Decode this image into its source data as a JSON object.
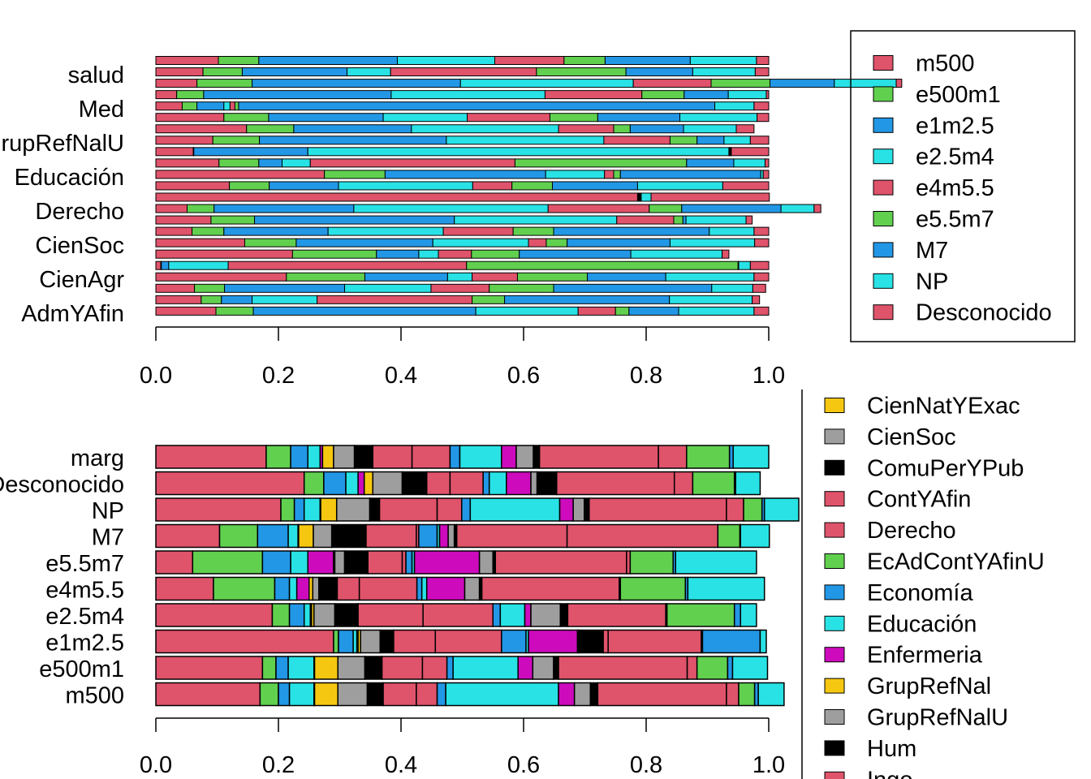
{
  "palette": {
    "red": "#DF536B",
    "green": "#61D04F",
    "blue": "#2297E6",
    "cyan": "#28E2E5",
    "magenta": "#CD0BBC",
    "yellow": "#F5C710",
    "gray": "#9E9E9E",
    "black": "#000000"
  },
  "chart_data": [
    {
      "type": "bar",
      "orientation": "horizontal",
      "stacked": "proportional",
      "xlim": [
        0,
        1
      ],
      "xticks": [
        "0.0",
        "0.2",
        "0.4",
        "0.6",
        "0.8",
        "1.0"
      ],
      "ytick_labels": [
        "salud",
        "Med",
        "GrupRefNalU",
        "Educación",
        "Derecho",
        "CienSoc",
        "CienAgr",
        "AdmYAfin"
      ],
      "legend": {
        "placement": "top-right",
        "entries": [
          "m500",
          "e500m1",
          "e1m2.5",
          "e2.5m4",
          "e4m5.5",
          "e5.5m7",
          "M7",
          "NP",
          "Desconocido"
        ],
        "colors": [
          "#DF536B",
          "#61D04F",
          "#2297E6",
          "#28E2E5",
          "#DF536B",
          "#61D04F",
          "#2297E6",
          "#28E2E5",
          "#DF536B"
        ]
      },
      "rows": [
        [
          0.102,
          0.066,
          0.226,
          0.159,
          0.113,
          0.067,
          0.139,
          0.108,
          0.02
        ],
        [
          0.077,
          0.064,
          0.171,
          0.071,
          0.238,
          0.146,
          0.109,
          0.102,
          0.022
        ],
        [
          0.067,
          0.09,
          0.34,
          0.282,
          0.127,
          0.096,
          0.105,
          0.101,
          0.009
        ],
        [
          0.034,
          0.044,
          0.306,
          0.251,
          0.158,
          0.069,
          0.072,
          0.062,
          0.004
        ],
        [
          0.043,
          0.024,
          0.044,
          0.01,
          0.008,
          0.006,
          0.777,
          0.064,
          0.024
        ],
        [
          0.111,
          0.073,
          0.187,
          0.137,
          0.135,
          0.078,
          0.134,
          0.126,
          0.019
        ],
        [
          0.148,
          0.077,
          0.192,
          0.24,
          0.09,
          0.027,
          0.087,
          0.086,
          0.029
        ],
        [
          0.093,
          0.076,
          0.305,
          0.257,
          0.108,
          0.044,
          0.044,
          0.043,
          0.03
        ],
        [
          0.061,
          0.001,
          0.186,
          0.687,
          0.001,
          0.001,
          0.001,
          0.001,
          0.061
        ],
        [
          0.103,
          0.065,
          0.038,
          0.046,
          0.334,
          0.28,
          0.077,
          0.051,
          0.006
        ],
        [
          0.275,
          0.099,
          0.262,
          0.096,
          0.015,
          0.011,
          0.229,
          0.004,
          0.009
        ],
        [
          0.12,
          0.065,
          0.113,
          0.219,
          0.064,
          0.066,
          0.139,
          0.139,
          0.075
        ],
        [
          0.786,
          0.001,
          0.001,
          0.001,
          0.001,
          0.001,
          0.001,
          0.016,
          0.193
        ],
        [
          0.051,
          0.044,
          0.228,
          0.317,
          0.165,
          0.053,
          0.162,
          0.054,
          0.011
        ],
        [
          0.09,
          0.071,
          0.326,
          0.265,
          0.093,
          0.015,
          0.005,
          0.098,
          0.01
        ],
        [
          0.059,
          0.052,
          0.17,
          0.188,
          0.114,
          0.066,
          0.254,
          0.073,
          0.024
        ],
        [
          0.145,
          0.084,
          0.223,
          0.156,
          0.029,
          0.034,
          0.168,
          0.138,
          0.023
        ],
        [
          0.223,
          0.137,
          0.069,
          0.032,
          0.054,
          0.078,
          0.182,
          0.149,
          0.011
        ],
        [
          0.008,
          0.001,
          0.012,
          0.097,
          0.389,
          0.443,
          0.001,
          0.019,
          0.03
        ],
        [
          0.213,
          0.128,
          0.135,
          0.04,
          0.074,
          0.114,
          0.128,
          0.144,
          0.024
        ],
        [
          0.063,
          0.049,
          0.196,
          0.141,
          0.095,
          0.105,
          0.258,
          0.067,
          0.021
        ],
        [
          0.074,
          0.033,
          0.05,
          0.106,
          0.253,
          0.053,
          0.269,
          0.135,
          0.012
        ],
        [
          0.098,
          0.061,
          0.363,
          0.167,
          0.061,
          0.022,
          0.081,
          0.123,
          0.024
        ]
      ]
    },
    {
      "type": "bar",
      "orientation": "horizontal",
      "stacked": "proportional",
      "xlim": [
        0,
        1
      ],
      "xticks": [
        "0.0",
        "0.2",
        "0.4",
        "0.6",
        "0.8",
        "1.0"
      ],
      "categories": [
        "marg",
        "Desconocido",
        "NP",
        "M7",
        "e5.5m7",
        "e4m5.5",
        "e2.5m4",
        "e1m2.5",
        "e500m1",
        "m500"
      ],
      "legend": {
        "placement": "right",
        "entries": [
          "CienNatYExac",
          "CienSoc",
          "ComuPerYPub",
          "ContYAfin",
          "Derecho",
          "EcAdContYAfinU",
          "Economía",
          "Educación",
          "Enfermeria",
          "GrupRefNal",
          "GrupRefNalU",
          "Hum",
          "Ingo"
        ],
        "colors": [
          "#F5C710",
          "#9E9E9E",
          "#000000",
          "#DF536B",
          "#DF536B",
          "#61D04F",
          "#2297E6",
          "#28E2E5",
          "#CD0BBC",
          "#F5C710",
          "#9E9E9E",
          "#000000",
          "#DF536B"
        ]
      },
      "series_colors": [
        "#DF536B",
        "#61D04F",
        "#2297E6",
        "#28E2E5",
        "#CD0BBC",
        "#F5C710",
        "#9E9E9E",
        "#000000",
        "#DF536B",
        "#DF536B",
        "#2297E6",
        "#28E2E5",
        "#CD0BBC",
        "#9E9E9E",
        "#000000",
        "#DF536B",
        "#DF536B",
        "#61D04F",
        "#2297E6",
        "#28E2E5"
      ],
      "rows": [
        [
          0.18,
          0.04,
          0.028,
          0.02,
          0.004,
          0.018,
          0.034,
          0.03,
          0.064,
          0.062,
          0.016,
          0.068,
          0.024,
          0.028,
          0.01,
          0.194,
          0.046,
          0.07,
          0.006,
          0.058
        ],
        [
          0.242,
          0.032,
          0.036,
          0.02,
          0.01,
          0.014,
          0.048,
          0.04,
          0.038,
          0.054,
          0.01,
          0.028,
          0.04,
          0.01,
          0.032,
          0.192,
          0.03,
          0.068,
          0.002,
          0.04
        ],
        [
          0.204,
          0.022,
          0.016,
          0.026,
          0.001,
          0.026,
          0.054,
          0.016,
          0.094,
          0.04,
          0.014,
          0.146,
          0.022,
          0.018,
          0.008,
          0.224,
          0.028,
          0.03,
          0.004,
          0.056
        ],
        [
          0.104,
          0.062,
          0.05,
          0.016,
          0.001,
          0.024,
          0.03,
          0.056,
          0.082,
          0.004,
          0.03,
          0.004,
          0.014,
          0.01,
          0.004,
          0.18,
          0.246,
          0.036,
          0.001,
          0.047
        ],
        [
          0.06,
          0.114,
          0.046,
          0.028,
          0.042,
          0.002,
          0.016,
          0.038,
          0.056,
          0.006,
          0.01,
          0.004,
          0.106,
          0.022,
          0.004,
          0.214,
          0.006,
          0.07,
          0.004,
          0.132
        ],
        [
          0.094,
          0.1,
          0.024,
          0.012,
          0.02,
          0.006,
          0.01,
          0.03,
          0.036,
          0.094,
          0.008,
          0.008,
          0.062,
          0.024,
          0.004,
          0.224,
          0.002,
          0.106,
          0.004,
          0.125
        ],
        [
          0.19,
          0.028,
          0.024,
          0.01,
          0.002,
          0.004,
          0.034,
          0.038,
          0.106,
          0.114,
          0.012,
          0.04,
          0.01,
          0.048,
          0.012,
          0.16,
          0.002,
          0.11,
          0.01,
          0.026
        ],
        [
          0.29,
          0.008,
          0.024,
          0.006,
          0.002,
          0.004,
          0.032,
          0.022,
          0.068,
          0.108,
          0.04,
          0.004,
          0.08,
          0.002,
          0.04,
          0.008,
          0.152,
          0.002,
          0.094,
          0.01
        ],
        [
          0.174,
          0.022,
          0.02,
          0.042,
          0.001,
          0.038,
          0.044,
          0.028,
          0.066,
          0.04,
          0.01,
          0.106,
          0.024,
          0.034,
          0.008,
          0.21,
          0.016,
          0.05,
          0.008,
          0.057
        ],
        [
          0.17,
          0.03,
          0.018,
          0.04,
          0.001,
          0.038,
          0.048,
          0.026,
          0.054,
          0.034,
          0.014,
          0.184,
          0.026,
          0.026,
          0.012,
          0.21,
          0.02,
          0.026,
          0.006,
          0.042
        ]
      ]
    }
  ]
}
